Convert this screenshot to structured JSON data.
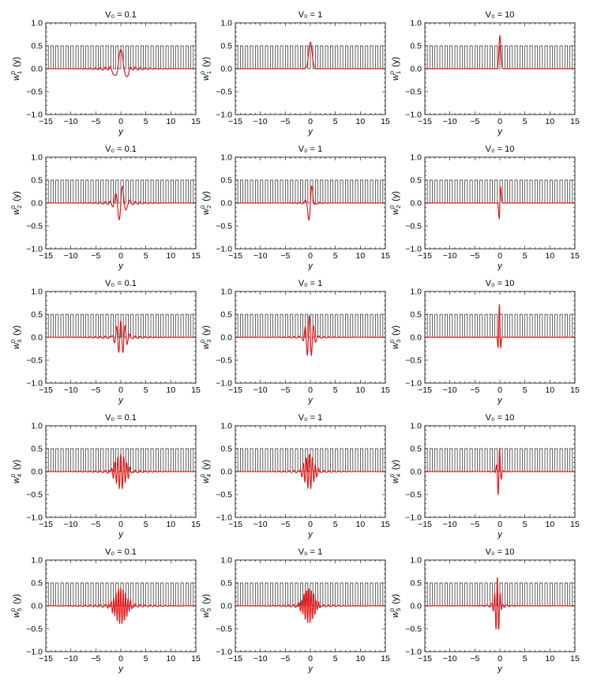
{
  "figure": {
    "rows": 5,
    "cols": 3,
    "colors": {
      "potential": "#222222",
      "wannier": "#e8191b",
      "frame": "#000000"
    },
    "xlabel": "y",
    "xlim": [
      -15,
      15
    ],
    "ylim": [
      -1.0,
      1.0
    ],
    "xticks": [
      -15,
      -10,
      -5,
      0,
      5,
      10,
      15
    ],
    "yticks": [
      -1.0,
      -0.5,
      0.0,
      0.5,
      1.0
    ],
    "x_tick_labels": [
      "−15",
      "−10",
      "−5",
      "0",
      "5",
      "10",
      "15"
    ],
    "y_tick_labels": [
      "−1.0",
      "−0.5",
      "0.0",
      "0.5",
      "1.0"
    ]
  },
  "chart_data": [
    {
      "type": "line",
      "row": 0,
      "col": 0,
      "title": "V₀ = 0.1",
      "ylabel_base": "w",
      "ylabel_sup": "0",
      "ylabel_sub": "1",
      "ylabel_tail": "(y)",
      "xlabel": "y",
      "xlim": [
        -15,
        15
      ],
      "ylim": [
        -1,
        1
      ],
      "potential": {
        "period": 1,
        "low": 0,
        "high": 0.5
      },
      "wannier": {
        "amp": 0.42,
        "width": 0.9,
        "freq": 2.4,
        "shift": 0,
        "tail_amp": 0.08,
        "tail_len": 3.5,
        "odd": false
      }
    },
    {
      "type": "line",
      "row": 0,
      "col": 1,
      "title": "V₀ = 1",
      "ylabel_base": "w",
      "ylabel_sup": "0",
      "ylabel_sub": "1",
      "ylabel_tail": "(y)",
      "xlabel": "y",
      "xlim": [
        -15,
        15
      ],
      "ylim": [
        -1,
        1
      ],
      "potential": {
        "period": 1,
        "low": 0,
        "high": 0.5
      },
      "wannier": {
        "amp": 0.58,
        "width": 0.35,
        "freq": 0,
        "shift": 0,
        "tail_amp": 0.02,
        "tail_len": 1.2,
        "odd": false
      }
    },
    {
      "type": "line",
      "row": 0,
      "col": 2,
      "title": "V₀ = 10",
      "ylabel_base": "w",
      "ylabel_sup": "0",
      "ylabel_sub": "1",
      "ylabel_tail": "(y)",
      "xlabel": "y",
      "xlim": [
        -15,
        15
      ],
      "ylim": [
        -1,
        1
      ],
      "potential": {
        "period": 1,
        "low": 0,
        "high": 0.5
      },
      "wannier": {
        "amp": 0.72,
        "width": 0.18,
        "freq": 0,
        "shift": 0,
        "tail_amp": 0,
        "tail_len": 0.5,
        "odd": false
      }
    },
    {
      "type": "line",
      "row": 1,
      "col": 0,
      "title": "V₀ = 0.1",
      "ylabel_base": "w",
      "ylabel_sup": "0",
      "ylabel_sub": "2",
      "ylabel_tail": "(y)",
      "xlabel": "y",
      "xlim": [
        -15,
        15
      ],
      "ylim": [
        -1,
        1
      ],
      "potential": {
        "period": 1,
        "low": 0,
        "high": 0.5
      },
      "wannier": {
        "amp": 0.4,
        "width": 0.8,
        "freq": 4.5,
        "shift": 0,
        "tail_amp": 0.08,
        "tail_len": 3.0,
        "odd": true
      }
    },
    {
      "type": "line",
      "row": 1,
      "col": 1,
      "title": "V₀ = 1",
      "ylabel_base": "w",
      "ylabel_sup": "0",
      "ylabel_sub": "2",
      "ylabel_tail": "(y)",
      "xlabel": "y",
      "xlim": [
        -15,
        15
      ],
      "ylim": [
        -1,
        1
      ],
      "potential": {
        "period": 1,
        "low": 0,
        "high": 0.5
      },
      "wannier": {
        "amp": 0.48,
        "width": 0.45,
        "freq": 4.5,
        "shift": 0,
        "tail_amp": 0.05,
        "tail_len": 1.8,
        "odd": true
      }
    },
    {
      "type": "line",
      "row": 1,
      "col": 2,
      "title": "V₀ = 10",
      "ylabel_base": "w",
      "ylabel_sup": "0",
      "ylabel_sub": "2",
      "ylabel_tail": "(y)",
      "xlabel": "y",
      "xlim": [
        -15,
        15
      ],
      "ylim": [
        -1,
        1
      ],
      "potential": {
        "period": 1,
        "low": 0,
        "high": 0.5
      },
      "wannier": {
        "amp": 0.72,
        "width": 0.16,
        "freq": 5.5,
        "shift": 0,
        "tail_amp": 0,
        "tail_len": 0.5,
        "odd": true
      }
    },
    {
      "type": "line",
      "row": 2,
      "col": 0,
      "title": "V₀ = 0.1",
      "ylabel_base": "w",
      "ylabel_sup": "0",
      "ylabel_sub": "3",
      "ylabel_tail": "(y)",
      "xlabel": "y",
      "xlim": [
        -15,
        15
      ],
      "ylim": [
        -1,
        1
      ],
      "potential": {
        "period": 1,
        "low": 0,
        "high": 0.5
      },
      "wannier": {
        "amp": 0.36,
        "width": 0.9,
        "freq": 7.5,
        "shift": 0,
        "tail_amp": 0.07,
        "tail_len": 3.5,
        "odd": false
      }
    },
    {
      "type": "line",
      "row": 2,
      "col": 1,
      "title": "V₀ = 1",
      "ylabel_base": "w",
      "ylabel_sup": "0",
      "ylabel_sub": "3",
      "ylabel_tail": "(y)",
      "xlabel": "y",
      "xlim": [
        -15,
        15
      ],
      "ylim": [
        -1,
        1
      ],
      "potential": {
        "period": 1,
        "low": 0,
        "high": 0.5
      },
      "wannier": {
        "amp": 0.46,
        "width": 0.7,
        "freq": 7.5,
        "shift": -0.2,
        "tail_amp": 0.06,
        "tail_len": 2.5,
        "odd": false
      }
    },
    {
      "type": "line",
      "row": 2,
      "col": 2,
      "title": "V₀ = 10",
      "ylabel_base": "w",
      "ylabel_sup": "0",
      "ylabel_sub": "3",
      "ylabel_tail": "(y)",
      "xlabel": "y",
      "xlim": [
        -15,
        15
      ],
      "ylim": [
        -1,
        1
      ],
      "potential": {
        "period": 1,
        "low": 0,
        "high": 0.5
      },
      "wannier": {
        "amp": 0.72,
        "width": 0.2,
        "freq": 9.0,
        "shift": -0.1,
        "tail_amp": 0,
        "tail_len": 0.5,
        "odd": false
      }
    },
    {
      "type": "line",
      "row": 3,
      "col": 0,
      "title": "V₀ = 0.1",
      "ylabel_base": "w",
      "ylabel_sup": "0",
      "ylabel_sub": "4",
      "ylabel_tail": "(y)",
      "xlabel": "y",
      "xlim": [
        -15,
        15
      ],
      "ylim": [
        -1,
        1
      ],
      "potential": {
        "period": 1,
        "low": 0,
        "high": 0.5
      },
      "wannier": {
        "amp": 0.38,
        "width": 1.0,
        "freq": 10.5,
        "shift": 0,
        "tail_amp": 0.06,
        "tail_len": 4.0,
        "odd": false
      }
    },
    {
      "type": "line",
      "row": 3,
      "col": 1,
      "title": "V₀ = 1",
      "ylabel_base": "w",
      "ylabel_sup": "0",
      "ylabel_sub": "4",
      "ylabel_tail": "(y)",
      "xlabel": "y",
      "xlim": [
        -15,
        15
      ],
      "ylim": [
        -1,
        1
      ],
      "potential": {
        "period": 1,
        "low": 0,
        "high": 0.5
      },
      "wannier": {
        "amp": 0.38,
        "width": 0.9,
        "freq": 10.5,
        "shift": -0.2,
        "tail_amp": 0.05,
        "tail_len": 3.5,
        "odd": false
      }
    },
    {
      "type": "line",
      "row": 3,
      "col": 2,
      "title": "V₀ = 10",
      "ylabel_base": "w",
      "ylabel_sup": "0",
      "ylabel_sub": "4",
      "ylabel_tail": "(y)",
      "xlabel": "y",
      "xlim": [
        -15,
        15
      ],
      "ylim": [
        -1,
        1
      ],
      "potential": {
        "period": 1,
        "low": 0,
        "high": 0.5
      },
      "wannier": {
        "amp": 0.58,
        "width": 0.3,
        "freq": 9.0,
        "shift": -0.2,
        "tail_amp": 0.03,
        "tail_len": 1.2,
        "odd": true
      }
    },
    {
      "type": "line",
      "row": 4,
      "col": 0,
      "title": "V₀ = 0.1",
      "ylabel_base": "w",
      "ylabel_sup": "0",
      "ylabel_sub": "5",
      "ylabel_tail": "(y)",
      "xlabel": "y",
      "xlim": [
        -15,
        15
      ],
      "ylim": [
        -1,
        1
      ],
      "potential": {
        "period": 1,
        "low": 0,
        "high": 0.5
      },
      "wannier": {
        "amp": 0.4,
        "width": 1.1,
        "freq": 13.0,
        "shift": 0,
        "tail_amp": 0.06,
        "tail_len": 5.0,
        "odd": false
      }
    },
    {
      "type": "line",
      "row": 4,
      "col": 1,
      "title": "V₀ = 1",
      "ylabel_base": "w",
      "ylabel_sup": "0",
      "ylabel_sub": "5",
      "ylabel_tail": "(y)",
      "xlabel": "y",
      "xlim": [
        -15,
        15
      ],
      "ylim": [
        -1,
        1
      ],
      "potential": {
        "period": 1,
        "low": 0,
        "high": 0.5
      },
      "wannier": {
        "amp": 0.38,
        "width": 1.0,
        "freq": 13.0,
        "shift": -0.3,
        "tail_amp": 0.05,
        "tail_len": 4.5,
        "odd": false
      }
    },
    {
      "type": "line",
      "row": 4,
      "col": 2,
      "title": "V₀ = 10",
      "ylabel_base": "w",
      "ylabel_sup": "0",
      "ylabel_sub": "5",
      "ylabel_tail": "(y)",
      "xlabel": "y",
      "xlim": [
        -15,
        15
      ],
      "ylim": [
        -1,
        1
      ],
      "potential": {
        "period": 1,
        "low": 0,
        "high": 0.5
      },
      "wannier": {
        "amp": 0.62,
        "width": 0.45,
        "freq": 11.0,
        "shift": -0.5,
        "tail_amp": 0.06,
        "tail_len": 1.8,
        "odd": false
      }
    }
  ]
}
